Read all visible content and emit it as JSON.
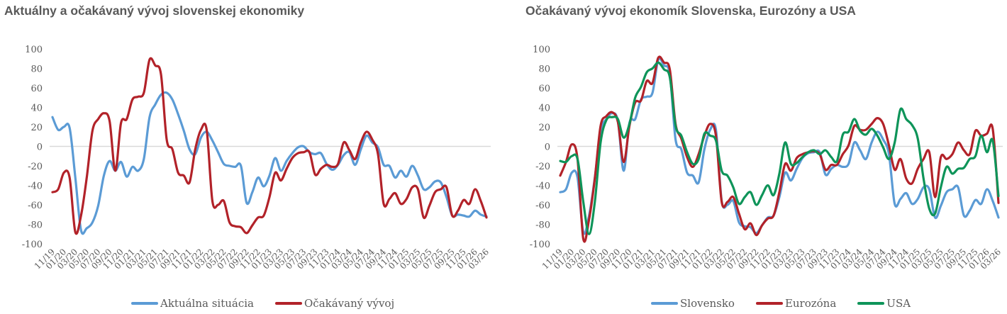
{
  "chart_data": [
    {
      "type": "line",
      "title": "Aktuálny a očakávaný vývoj slovenskej ekonomiky",
      "xlabel": "",
      "ylabel": "",
      "ylim": [
        -100,
        100
      ],
      "yticks": [
        100,
        80,
        60,
        40,
        20,
        0,
        -20,
        -40,
        -60,
        -80,
        -100
      ],
      "x_tick_labels": [
        "11/19",
        "01/20",
        "03/20",
        "05/20",
        "07/20",
        "09/20",
        "11/20",
        "01/21",
        "03/21",
        "05/21",
        "07/21",
        "09/21",
        "11/21",
        "01/22",
        "03/22",
        "05/22",
        "07/22",
        "09/22",
        "11/22",
        "01/23",
        "03/23",
        "05/23",
        "07/23",
        "09/23",
        "11/23",
        "01/24",
        "03/24",
        "05/24",
        "07/24",
        "09/24",
        "11/24",
        "01/25",
        "03/25",
        "05/25",
        "07/25",
        "09/25",
        "11/25",
        "01/26",
        "03/26"
      ],
      "x_note": "monthly data 11/19 to 03/26",
      "legend_position": "bottom",
      "grid": false,
      "series": [
        {
          "name": "Aktuálna situácia",
          "color": "#5b9bd5",
          "values": [
            30,
            17,
            20,
            19,
            -32,
            -86,
            -84,
            -78,
            -61,
            -30,
            -15,
            -25,
            -16,
            -31,
            -21,
            -25,
            -13,
            30,
            43,
            53,
            55,
            48,
            33,
            16,
            -3,
            -8,
            9,
            15,
            6,
            -6,
            -18,
            -20,
            -21,
            -20,
            -58,
            -47,
            -32,
            -41,
            -30,
            -12,
            -25,
            -15,
            -7,
            -1,
            0,
            -6,
            -8,
            -7,
            -18,
            -24,
            -19,
            -9,
            -6,
            -19,
            -3,
            11,
            4,
            -1,
            -19,
            -20,
            -32,
            -25,
            -31,
            -20,
            -30,
            -44,
            -42,
            -36,
            -37,
            -52,
            -71,
            -70,
            -71,
            -72,
            -66,
            -70,
            -72
          ]
        },
        {
          "name": "Očakávaný vývoj",
          "color": "#b22229",
          "values": [
            -47,
            -44,
            -27,
            -32,
            -88,
            -71,
            -32,
            16,
            28,
            34,
            26,
            -25,
            24,
            28,
            48,
            51,
            55,
            89,
            83,
            74,
            7,
            -3,
            -27,
            -30,
            -37,
            -3,
            17,
            17,
            -56,
            -60,
            -56,
            -78,
            -82,
            -83,
            -89,
            -81,
            -73,
            -71,
            -52,
            -27,
            -35,
            -23,
            -12,
            -7,
            -6,
            -6,
            -29,
            -23,
            -19,
            -21,
            -18,
            4,
            -4,
            -13,
            4,
            15,
            7,
            -8,
            -59,
            -54,
            -48,
            -59,
            -54,
            -42,
            -44,
            -73,
            -61,
            -47,
            -44,
            -42,
            -71,
            -66,
            -55,
            -59,
            -44,
            -56,
            -73
          ]
        }
      ]
    },
    {
      "type": "line",
      "title": "Očakávaný vývoj ekonomík Slovenska, Eurozóny a USA",
      "xlabel": "",
      "ylabel": "",
      "ylim": [
        -100,
        100
      ],
      "yticks": [
        100,
        80,
        60,
        40,
        20,
        0,
        -20,
        -40,
        -60,
        -80,
        -100
      ],
      "x_tick_labels": [
        "11/19",
        "01/20",
        "03/20",
        "05/20",
        "07/20",
        "09/20",
        "11/20",
        "01/21",
        "03/21",
        "05/21",
        "07/21",
        "09/21",
        "11/21",
        "01/22",
        "03/22",
        "05/22",
        "07/22",
        "09/22",
        "11/22",
        "01/23",
        "03/23",
        "05/23",
        "07/23",
        "09/23",
        "11/23",
        "01/24",
        "03/24",
        "05/24",
        "07/24",
        "09/24",
        "11/24",
        "01/25",
        "03/25",
        "05/25",
        "07/25",
        "09/25",
        "11/25",
        "01/26",
        "03/26"
      ],
      "legend_position": "bottom",
      "grid": false,
      "series": [
        {
          "name": "Slovensko",
          "color": "#5b9bd5",
          "values": [
            -47,
            -44,
            -27,
            -32,
            -88,
            -71,
            -32,
            16,
            28,
            34,
            26,
            -25,
            24,
            28,
            48,
            51,
            55,
            89,
            83,
            74,
            7,
            -3,
            -27,
            -30,
            -37,
            -3,
            17,
            17,
            -56,
            -60,
            -56,
            -78,
            -82,
            -83,
            -89,
            -81,
            -73,
            -71,
            -52,
            -27,
            -35,
            -23,
            -12,
            -7,
            -6,
            -6,
            -29,
            -23,
            -19,
            -21,
            -18,
            4,
            -4,
            -13,
            4,
            15,
            7,
            -8,
            -59,
            -54,
            -48,
            -59,
            -54,
            -42,
            -44,
            -73,
            -61,
            -47,
            -44,
            -42,
            -71,
            -66,
            -55,
            -59,
            -44,
            -56,
            -73
          ]
        },
        {
          "name": "Eurozóna",
          "color": "#b22229",
          "values": [
            -30,
            -16,
            2,
            -13,
            -95,
            -75,
            -33,
            21,
            31,
            35,
            25,
            -16,
            21,
            45,
            47,
            67,
            65,
            91,
            86,
            79,
            23,
            8,
            -11,
            -21,
            -8,
            11,
            23,
            11,
            -57,
            -57,
            -52,
            -69,
            -85,
            -79,
            -91,
            -81,
            -74,
            -71,
            -47,
            -18,
            -25,
            -12,
            -8,
            -6,
            -5,
            -8,
            -24,
            -19,
            -19,
            -8,
            1,
            21,
            17,
            17,
            23,
            29,
            23,
            1,
            -24,
            -13,
            -33,
            -38,
            -23,
            -13,
            -6,
            -52,
            -11,
            -13,
            -8,
            4,
            -4,
            -8,
            16,
            11,
            13,
            18,
            -58
          ]
        },
        {
          "name": "USA",
          "color": "#0e9459",
          "values": [
            -15,
            -16,
            -10,
            -13,
            -57,
            -90,
            -57,
            4,
            27,
            30,
            28,
            9,
            23,
            50,
            61,
            76,
            80,
            86,
            79,
            71,
            21,
            11,
            -6,
            -18,
            -13,
            13,
            11,
            6,
            -25,
            -30,
            -42,
            -59,
            -52,
            -47,
            -60,
            -50,
            -40,
            -50,
            -28,
            4,
            -18,
            -17,
            -11,
            -6,
            -4,
            -8,
            -4,
            -11,
            -15,
            12,
            15,
            28,
            16,
            12,
            18,
            11,
            -1,
            -13,
            4,
            38,
            28,
            22,
            8,
            -33,
            -64,
            -69,
            -42,
            -21,
            -28,
            -23,
            -22,
            -13,
            -10,
            11,
            -6,
            6,
            -51
          ]
        }
      ]
    }
  ]
}
